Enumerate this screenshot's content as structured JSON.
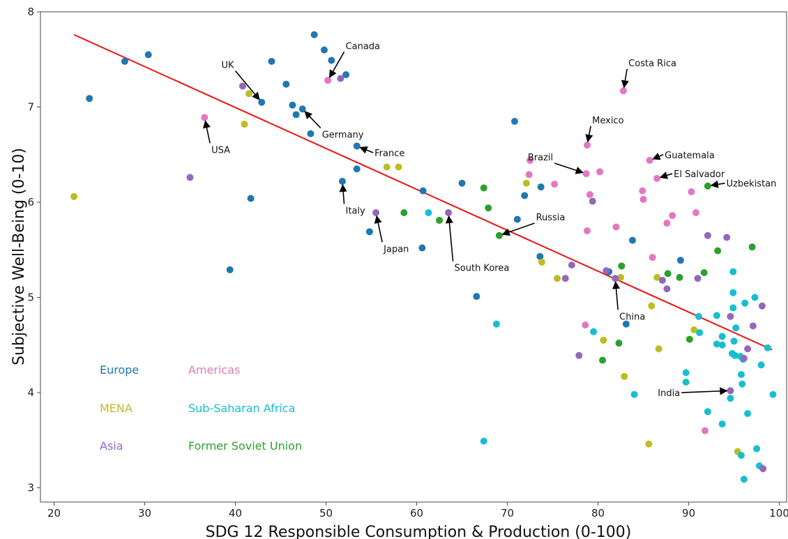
{
  "chart_data": {
    "type": "scatter",
    "xlabel": "SDG 12 Responsible Consumption & Production (0-100)",
    "ylabel": "Subjective Well-Being (0-10)",
    "xlim": [
      18.5,
      100.8
    ],
    "ylim": [
      2.85,
      8.0
    ],
    "xticks": [
      20,
      30,
      40,
      50,
      60,
      70,
      80,
      90,
      100
    ],
    "yticks": [
      3,
      4,
      5,
      6,
      7,
      8
    ],
    "grid": false,
    "trend_line": {
      "color": "#ee1111",
      "from": [
        22.2,
        7.76
      ],
      "to": [
        99.2,
        4.45
      ]
    },
    "series": [
      {
        "name": "Europe",
        "color": "#1f77b4",
        "points": [
          [
            23.9,
            7.09
          ],
          [
            27.8,
            7.48
          ],
          [
            30.4,
            7.55
          ],
          [
            39.4,
            5.29
          ],
          [
            41.7,
            6.04
          ],
          [
            42.9,
            7.05
          ],
          [
            44.0,
            7.48
          ],
          [
            45.6,
            7.24
          ],
          [
            46.3,
            7.02
          ],
          [
            46.7,
            6.92
          ],
          [
            47.4,
            6.98
          ],
          [
            48.3,
            6.72
          ],
          [
            48.7,
            7.76
          ],
          [
            49.8,
            7.6
          ],
          [
            50.6,
            7.49
          ],
          [
            52.2,
            7.34
          ],
          [
            53.4,
            6.59
          ],
          [
            53.4,
            6.35
          ],
          [
            51.8,
            6.22
          ],
          [
            54.8,
            5.69
          ],
          [
            60.7,
            6.12
          ],
          [
            60.6,
            5.52
          ],
          [
            65.0,
            6.2
          ],
          [
            66.6,
            5.01
          ],
          [
            70.8,
            6.85
          ],
          [
            71.1,
            5.82
          ],
          [
            71.9,
            6.07
          ],
          [
            73.7,
            6.16
          ],
          [
            73.6,
            5.43
          ],
          [
            81.2,
            5.27
          ],
          [
            83.1,
            4.72
          ],
          [
            83.8,
            5.6
          ],
          [
            89.1,
            5.39
          ]
        ]
      },
      {
        "name": "Americas",
        "color": "#e377c2",
        "points": [
          [
            36.6,
            6.89
          ],
          [
            50.2,
            7.28
          ],
          [
            72.5,
            6.44
          ],
          [
            72.4,
            6.29
          ],
          [
            75.2,
            6.19
          ],
          [
            78.6,
            4.71
          ],
          [
            78.7,
            6.3
          ],
          [
            78.8,
            6.6
          ],
          [
            78.8,
            5.7
          ],
          [
            79.1,
            6.08
          ],
          [
            80.2,
            6.32
          ],
          [
            82.0,
            5.74
          ],
          [
            82.8,
            7.17
          ],
          [
            84.9,
            6.12
          ],
          [
            85.0,
            6.03
          ],
          [
            85.7,
            6.44
          ],
          [
            86.0,
            5.42
          ],
          [
            86.5,
            6.25
          ],
          [
            87.6,
            5.78
          ],
          [
            88.2,
            5.86
          ],
          [
            90.3,
            6.11
          ],
          [
            90.8,
            5.89
          ],
          [
            91.8,
            3.6
          ]
        ]
      },
      {
        "name": "MENA",
        "color": "#bcbd22",
        "points": [
          [
            22.2,
            6.06
          ],
          [
            41.0,
            6.82
          ],
          [
            41.5,
            7.14
          ],
          [
            56.7,
            6.37
          ],
          [
            58.0,
            6.37
          ],
          [
            72.1,
            6.2
          ],
          [
            73.8,
            5.37
          ],
          [
            75.5,
            5.2
          ],
          [
            80.6,
            4.55
          ],
          [
            82.5,
            5.21
          ],
          [
            82.9,
            4.17
          ],
          [
            85.6,
            3.46
          ],
          [
            85.9,
            4.91
          ],
          [
            86.5,
            5.21
          ],
          [
            86.7,
            4.46
          ],
          [
            90.6,
            4.66
          ],
          [
            95.4,
            3.38
          ]
        ]
      },
      {
        "name": "Sub-Saharan Africa",
        "color": "#17becf",
        "points": [
          [
            61.3,
            5.89
          ],
          [
            67.4,
            3.49
          ],
          [
            68.8,
            4.72
          ],
          [
            79.5,
            4.64
          ],
          [
            84.0,
            3.98
          ],
          [
            89.7,
            4.21
          ],
          [
            89.7,
            4.11
          ],
          [
            91.1,
            4.8
          ],
          [
            91.2,
            4.63
          ],
          [
            92.1,
            3.8
          ],
          [
            93.1,
            4.81
          ],
          [
            93.1,
            4.51
          ],
          [
            93.7,
            4.59
          ],
          [
            93.7,
            4.5
          ],
          [
            93.7,
            3.67
          ],
          [
            94.6,
            3.94
          ],
          [
            94.8,
            4.41
          ],
          [
            94.9,
            5.27
          ],
          [
            94.9,
            5.05
          ],
          [
            94.9,
            4.89
          ],
          [
            95.0,
            4.54
          ],
          [
            95.1,
            4.39
          ],
          [
            95.2,
            4.68
          ],
          [
            95.7,
            4.38
          ],
          [
            95.8,
            4.19
          ],
          [
            95.8,
            3.34
          ],
          [
            95.9,
            4.09
          ],
          [
            96.0,
            4.35
          ],
          [
            96.1,
            3.09
          ],
          [
            96.2,
            4.94
          ],
          [
            96.5,
            3.78
          ],
          [
            97.3,
            5.0
          ],
          [
            97.5,
            3.41
          ],
          [
            97.8,
            3.23
          ],
          [
            98.0,
            4.29
          ],
          [
            98.7,
            4.47
          ],
          [
            99.3,
            3.98
          ]
        ]
      },
      {
        "name": "Asia",
        "color": "#9467bd",
        "points": [
          [
            35.0,
            6.26
          ],
          [
            40.8,
            7.22
          ],
          [
            51.6,
            7.3
          ],
          [
            55.5,
            5.89
          ],
          [
            63.5,
            5.89
          ],
          [
            76.4,
            5.2
          ],
          [
            77.1,
            5.34
          ],
          [
            77.9,
            4.39
          ],
          [
            79.4,
            6.01
          ],
          [
            80.9,
            5.28
          ],
          [
            81.9,
            5.2
          ],
          [
            87.1,
            5.18
          ],
          [
            87.6,
            5.09
          ],
          [
            91.0,
            5.2
          ],
          [
            92.1,
            5.65
          ],
          [
            94.2,
            5.63
          ],
          [
            94.6,
            4.8
          ],
          [
            94.6,
            4.02
          ],
          [
            96.1,
            4.36
          ],
          [
            96.5,
            4.46
          ],
          [
            97.1,
            4.7
          ],
          [
            98.1,
            4.91
          ],
          [
            98.2,
            3.2
          ]
        ]
      },
      {
        "name": "Former Soviet Union",
        "color": "#2ca02c",
        "points": [
          [
            58.6,
            5.89
          ],
          [
            62.5,
            5.81
          ],
          [
            67.4,
            6.15
          ],
          [
            67.9,
            5.94
          ],
          [
            69.1,
            5.65
          ],
          [
            80.5,
            4.34
          ],
          [
            82.3,
            4.52
          ],
          [
            82.6,
            5.33
          ],
          [
            87.7,
            5.25
          ],
          [
            89.0,
            5.21
          ],
          [
            90.1,
            4.56
          ],
          [
            91.7,
            5.26
          ],
          [
            92.1,
            6.17
          ],
          [
            93.2,
            5.49
          ],
          [
            97.0,
            5.53
          ]
        ]
      }
    ],
    "annotations": [
      {
        "label": "Canada",
        "point": [
          50.2,
          7.28
        ],
        "text_at": [
          52.0,
          7.58
        ]
      },
      {
        "label": "UK",
        "point": [
          42.9,
          7.05
        ],
        "text_at": [
          40.0,
          7.38
        ]
      },
      {
        "label": "USA",
        "point": [
          36.6,
          6.89
        ],
        "text_at": [
          37.2,
          6.62
        ]
      },
      {
        "label": "Germany",
        "point": [
          47.4,
          6.98
        ],
        "text_at": [
          49.4,
          6.78
        ]
      },
      {
        "label": "France",
        "point": [
          53.4,
          6.59
        ],
        "text_at": [
          55.2,
          6.52
        ]
      },
      {
        "label": "Italy",
        "point": [
          51.8,
          6.22
        ],
        "text_at": [
          52.0,
          5.98
        ]
      },
      {
        "label": "Japan",
        "point": [
          55.5,
          5.89
        ],
        "text_at": [
          56.2,
          5.58
        ]
      },
      {
        "label": "South Korea",
        "point": [
          63.5,
          5.89
        ],
        "text_at": [
          64.0,
          5.38
        ]
      },
      {
        "label": "Russia",
        "point": [
          69.1,
          5.65
        ],
        "text_at": [
          73.0,
          5.78
        ]
      },
      {
        "label": "Costa Rica",
        "point": [
          82.8,
          7.17
        ],
        "text_at": [
          83.2,
          7.4
        ]
      },
      {
        "label": "Mexico",
        "point": [
          78.8,
          6.6
        ],
        "text_at": [
          79.2,
          6.8
        ]
      },
      {
        "label": "Brazil",
        "point": [
          78.7,
          6.3
        ],
        "text_at": [
          75.2,
          6.41
        ]
      },
      {
        "label": "Guatemala",
        "point": [
          85.7,
          6.44
        ],
        "text_at": [
          87.2,
          6.5
        ]
      },
      {
        "label": "El Salvador",
        "point": [
          86.5,
          6.25
        ],
        "text_at": [
          88.2,
          6.3
        ]
      },
      {
        "label": "Uzbekistan",
        "point": [
          92.1,
          6.17
        ],
        "text_at": [
          94.0,
          6.2
        ]
      },
      {
        "label": "China",
        "point": [
          81.9,
          5.2
        ],
        "text_at": [
          82.2,
          4.87
        ]
      },
      {
        "label": "India",
        "point": [
          94.6,
          4.02
        ],
        "text_at": [
          89.2,
          4.0
        ]
      }
    ],
    "legend": {
      "placement": "lower-left",
      "entries": [
        {
          "label": "Europe",
          "color": "#1f77b4"
        },
        {
          "label": "Americas",
          "color": "#e377c2"
        },
        {
          "label": "MENA",
          "color": "#bcbd22"
        },
        {
          "label": "Sub-Saharan Africa",
          "color": "#17becf"
        },
        {
          "label": "Asia",
          "color": "#9467bd"
        },
        {
          "label": "Former Soviet Union",
          "color": "#2ca02c"
        }
      ]
    }
  }
}
